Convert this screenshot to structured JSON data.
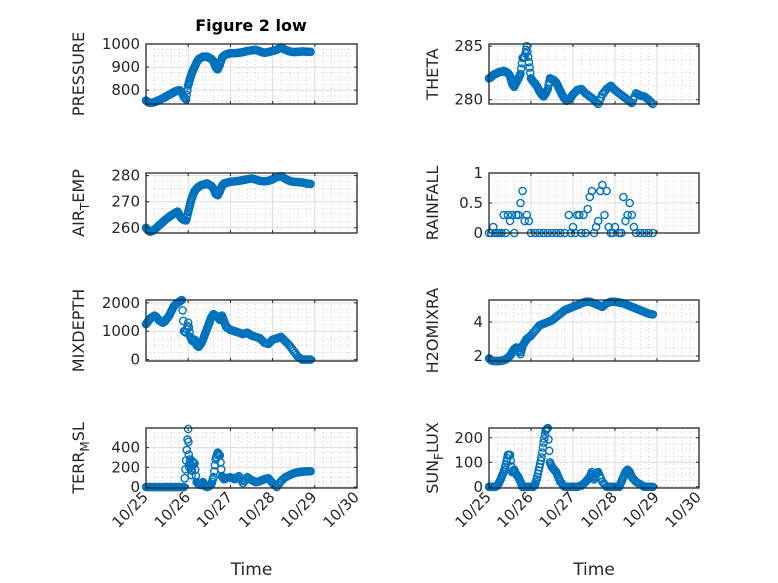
{
  "figure_title": "Figure 2 low",
  "colors": {
    "marker": "#0072BD",
    "axis": "#262626",
    "grid": "#dcdcdc",
    "minor_grid": "#b4b4b4"
  },
  "chart_data": [
    {
      "type": "scatter",
      "id": "pressure",
      "title": "Figure 2 low",
      "ylabel": "PRESSURE",
      "xlabel": "",
      "xlim": [
        25,
        30
      ],
      "ylim": [
        740,
        1000
      ],
      "xticks": [
        25,
        26,
        27,
        28,
        29,
        30
      ],
      "xticklabels": [],
      "yticks": [
        800,
        900,
        1000
      ],
      "yticklabels": [
        "800",
        "900",
        "1000"
      ],
      "grid": true,
      "minor_grid": true,
      "x": [
        25.0,
        25.05,
        25.1,
        25.15,
        25.2,
        25.25,
        25.3,
        25.35,
        25.4,
        25.45,
        25.5,
        25.55,
        25.6,
        25.65,
        25.7,
        25.75,
        25.8,
        25.85,
        25.9,
        25.95,
        26.0,
        26.03,
        26.06,
        26.1,
        26.15,
        26.2,
        26.25,
        26.3,
        26.35,
        26.4,
        26.45,
        26.5,
        26.55,
        26.6,
        26.65,
        26.7,
        26.75,
        26.8,
        26.85,
        26.9,
        26.95,
        27.0,
        27.1,
        27.2,
        27.3,
        27.4,
        27.5,
        27.6,
        27.7,
        27.8,
        27.9,
        28.0,
        28.1,
        28.2,
        28.3,
        28.4,
        28.5,
        28.6,
        28.7,
        28.8,
        28.9
      ],
      "y": [
        755,
        748,
        745,
        746,
        748,
        752,
        756,
        760,
        765,
        770,
        775,
        780,
        785,
        790,
        795,
        798,
        800,
        790,
        770,
        760,
        820,
        840,
        860,
        880,
        900,
        920,
        935,
        940,
        945,
        945,
        945,
        940,
        935,
        925,
        900,
        890,
        910,
        940,
        950,
        955,
        958,
        960,
        960,
        962,
        965,
        970,
        972,
        975,
        968,
        962,
        965,
        970,
        975,
        985,
        975,
        968,
        965,
        966,
        968,
        967,
        966
      ]
    },
    {
      "type": "scatter",
      "id": "theta",
      "ylabel": "THETA",
      "xlabel": "",
      "xlim": [
        25,
        30
      ],
      "ylim": [
        279.6,
        285.2
      ],
      "xticks": [
        25,
        26,
        27,
        28,
        29,
        30
      ],
      "xticklabels": [],
      "yticks": [
        280,
        285
      ],
      "yticklabels": [
        "280",
        "285"
      ],
      "grid": true,
      "minor_grid": true,
      "x": [
        25.0,
        25.05,
        25.1,
        25.15,
        25.2,
        25.25,
        25.3,
        25.35,
        25.4,
        25.45,
        25.5,
        25.55,
        25.6,
        25.65,
        25.7,
        25.75,
        25.8,
        25.85,
        25.9,
        25.95,
        26.0,
        26.05,
        26.1,
        26.15,
        26.2,
        26.25,
        26.3,
        26.35,
        26.4,
        26.45,
        26.5,
        26.55,
        26.6,
        26.65,
        26.7,
        26.75,
        26.8,
        26.85,
        26.9,
        26.95,
        27.0,
        27.1,
        27.2,
        27.3,
        27.4,
        27.5,
        27.6,
        27.7,
        27.8,
        27.9,
        28.0,
        28.1,
        28.2,
        28.3,
        28.4,
        28.5,
        28.6,
        28.7,
        28.8,
        28.9
      ],
      "y": [
        282.0,
        282.1,
        282.3,
        282.4,
        282.5,
        282.6,
        282.6,
        282.7,
        282.6,
        282.5,
        282.2,
        281.5,
        281.2,
        281.6,
        282.0,
        282.4,
        283.9,
        284.0,
        285.0,
        283.5,
        282.0,
        281.7,
        281.5,
        281.2,
        280.8,
        280.5,
        280.3,
        280.6,
        281.0,
        282.0,
        281.9,
        281.8,
        281.6,
        281.2,
        280.8,
        280.4,
        280.1,
        279.9,
        280.0,
        280.2,
        280.5,
        280.9,
        281.0,
        280.6,
        280.3,
        280.0,
        279.6,
        280.5,
        281.0,
        281.3,
        280.9,
        280.6,
        280.3,
        280.0,
        279.7,
        280.6,
        280.4,
        280.3,
        280.0,
        279.6
      ]
    },
    {
      "type": "scatter",
      "id": "air_temp",
      "ylabel": "AIR_TEMP",
      "ylabel_main": "AIR",
      "ylabel_sub": "T",
      "ylabel_rest": "EMP",
      "xlabel": "",
      "xlim": [
        25,
        30
      ],
      "ylim": [
        258,
        281
      ],
      "xticks": [
        25,
        26,
        27,
        28,
        29,
        30
      ],
      "xticklabels": [],
      "yticks": [
        260,
        270,
        280
      ],
      "yticklabels": [
        "260",
        "270",
        "280"
      ],
      "grid": true,
      "minor_grid": true,
      "x": [
        25.0,
        25.05,
        25.1,
        25.15,
        25.2,
        25.25,
        25.3,
        25.35,
        25.4,
        25.45,
        25.5,
        25.55,
        25.6,
        25.65,
        25.7,
        25.75,
        25.8,
        25.85,
        25.9,
        25.95,
        26.0,
        26.03,
        26.06,
        26.1,
        26.15,
        26.2,
        26.25,
        26.3,
        26.35,
        26.4,
        26.45,
        26.5,
        26.55,
        26.6,
        26.65,
        26.7,
        26.75,
        26.8,
        26.85,
        26.9,
        26.95,
        27.0,
        27.1,
        27.2,
        27.3,
        27.4,
        27.5,
        27.6,
        27.7,
        27.8,
        27.9,
        28.0,
        28.1,
        28.2,
        28.3,
        28.4,
        28.5,
        28.6,
        28.7,
        28.8,
        28.9
      ],
      "y": [
        260,
        259,
        258.5,
        258.8,
        259.3,
        260,
        260.8,
        261.5,
        262.2,
        263,
        263.6,
        264.2,
        264.8,
        265.3,
        265.8,
        266.2,
        264.5,
        263.5,
        263,
        262.8,
        266,
        268,
        270,
        272,
        274,
        275,
        275.8,
        276.3,
        276.5,
        276.8,
        277,
        276.5,
        276,
        275,
        273,
        272.5,
        274,
        276,
        277,
        277.2,
        277.5,
        277.6,
        277.8,
        278,
        278.3,
        278.6,
        278.9,
        278.5,
        278,
        277.8,
        278,
        278.6,
        279.5,
        279.8,
        278.8,
        278,
        277.6,
        277.5,
        277.4,
        277.0,
        276.8
      ]
    },
    {
      "type": "scatter",
      "id": "rainfall",
      "ylabel": "RAINFALL",
      "xlabel": "",
      "xlim": [
        25,
        30
      ],
      "ylim": [
        0,
        1
      ],
      "xticks": [
        25,
        26,
        27,
        28,
        29,
        30
      ],
      "xticklabels": [],
      "yticks": [
        0,
        0.5,
        1
      ],
      "yticklabels": [
        "0",
        "0.5",
        "1"
      ],
      "grid": true,
      "minor_grid": true,
      "x": [
        25.0,
        25.05,
        25.1,
        25.15,
        25.2,
        25.25,
        25.3,
        25.35,
        25.4,
        25.45,
        25.5,
        25.55,
        25.6,
        25.65,
        25.7,
        25.75,
        25.8,
        25.85,
        25.9,
        25.95,
        26.0,
        26.1,
        26.2,
        26.3,
        26.4,
        26.5,
        26.6,
        26.7,
        26.8,
        26.9,
        26.95,
        27.0,
        27.05,
        27.1,
        27.15,
        27.2,
        27.25,
        27.3,
        27.35,
        27.4,
        27.45,
        27.5,
        27.55,
        27.6,
        27.65,
        27.7,
        27.75,
        27.8,
        27.85,
        27.9,
        27.95,
        28.0,
        28.1,
        28.15,
        28.2,
        28.25,
        28.3,
        28.35,
        28.4,
        28.45,
        28.5,
        28.6,
        28.7,
        28.8,
        28.9
      ],
      "y": [
        0,
        0,
        0.1,
        0,
        0,
        0,
        0,
        0.3,
        0,
        0.3,
        0.2,
        0.3,
        0,
        0.3,
        0.3,
        0.5,
        0.7,
        0.2,
        0.3,
        0.2,
        0,
        0,
        0,
        0,
        0,
        0,
        0,
        0,
        0,
        0.3,
        0,
        0.1,
        0,
        0.3,
        0.3,
        0,
        0.3,
        0,
        0.4,
        0.6,
        0.7,
        0,
        0.1,
        0.2,
        0.7,
        0.8,
        0.3,
        0.7,
        0.1,
        0,
        0,
        0.1,
        0,
        0,
        0.6,
        0.2,
        0.3,
        0.5,
        0.3,
        0.1,
        0,
        0,
        0,
        0,
        0
      ]
    },
    {
      "type": "scatter",
      "id": "mixdepth",
      "ylabel": "MIXDEPTH",
      "xlabel": "",
      "xlim": [
        25,
        30
      ],
      "ylim": [
        -50,
        2100
      ],
      "xticks": [
        25,
        26,
        27,
        28,
        29,
        30
      ],
      "xticklabels": [],
      "yticks": [
        0,
        1000,
        2000
      ],
      "yticklabels": [
        "0",
        "1000",
        "2000"
      ],
      "grid": true,
      "minor_grid": true,
      "x": [
        25.0,
        25.05,
        25.1,
        25.15,
        25.2,
        25.25,
        25.3,
        25.35,
        25.4,
        25.45,
        25.5,
        25.55,
        25.6,
        25.65,
        25.7,
        25.75,
        25.8,
        25.85,
        25.9,
        25.95,
        26.0,
        26.05,
        26.1,
        26.15,
        26.2,
        26.25,
        26.3,
        26.35,
        26.4,
        26.45,
        26.5,
        26.55,
        26.6,
        26.65,
        26.7,
        26.75,
        26.8,
        26.85,
        26.9,
        27.0,
        27.1,
        27.2,
        27.3,
        27.4,
        27.5,
        27.6,
        27.7,
        27.8,
        27.9,
        28.0,
        28.1,
        28.2,
        28.3,
        28.4,
        28.5,
        28.6,
        28.7,
        28.8,
        28.9
      ],
      "y": [
        1250,
        1350,
        1450,
        1500,
        1550,
        1500,
        1400,
        1350,
        1300,
        1350,
        1450,
        1550,
        1700,
        1850,
        1950,
        2000,
        2050,
        2100,
        1000,
        950,
        1300,
        800,
        650,
        700,
        500,
        450,
        550,
        700,
        900,
        1100,
        1300,
        1500,
        1600,
        1550,
        1500,
        1400,
        1550,
        1350,
        1150,
        1050,
        1000,
        950,
        900,
        950,
        850,
        800,
        750,
        600,
        550,
        700,
        750,
        800,
        650,
        500,
        300,
        100,
        0,
        0,
        0
      ]
    },
    {
      "type": "scatter",
      "id": "h2omixra",
      "ylabel": "H2OMIXRA",
      "xlabel": "",
      "xlim": [
        25,
        30
      ],
      "ylim": [
        1.7,
        5.3
      ],
      "xticks": [
        25,
        26,
        27,
        28,
        29,
        30
      ],
      "xticklabels": [],
      "yticks": [
        2,
        4
      ],
      "yticklabels": [
        "2",
        "4"
      ],
      "grid": true,
      "minor_grid": true,
      "x": [
        25.0,
        25.05,
        25.1,
        25.15,
        25.2,
        25.25,
        25.3,
        25.35,
        25.4,
        25.45,
        25.5,
        25.55,
        25.6,
        25.65,
        25.7,
        25.75,
        25.8,
        25.85,
        25.9,
        26.0,
        26.1,
        26.2,
        26.3,
        26.4,
        26.5,
        26.6,
        26.7,
        26.8,
        26.9,
        27.0,
        27.1,
        27.2,
        27.3,
        27.4,
        27.5,
        27.6,
        27.7,
        27.8,
        27.9,
        28.0,
        28.1,
        28.2,
        28.3,
        28.4,
        28.5,
        28.6,
        28.7,
        28.8,
        28.9
      ],
      "y": [
        1.85,
        1.75,
        1.7,
        1.7,
        1.7,
        1.7,
        1.72,
        1.75,
        1.8,
        1.9,
        2.0,
        2.2,
        2.4,
        2.5,
        2.45,
        2.1,
        2.6,
        2.8,
        3.0,
        3.2,
        3.5,
        3.8,
        3.9,
        4.0,
        4.1,
        4.3,
        4.5,
        4.7,
        4.8,
        4.9,
        5.0,
        5.1,
        5.2,
        5.2,
        5.1,
        5.0,
        4.9,
        5.1,
        5.2,
        5.2,
        5.15,
        5.1,
        5.0,
        4.9,
        4.8,
        4.7,
        4.6,
        4.5,
        4.45
      ]
    },
    {
      "type": "scatter",
      "id": "terr_msl",
      "ylabel": "TERR_MSL",
      "ylabel_main": "TERR",
      "ylabel_sub": "M",
      "ylabel_rest": "SL",
      "xlabel": "Time",
      "xlim": [
        25,
        30
      ],
      "ylim": [
        -10,
        600
      ],
      "xticks": [
        25,
        26,
        27,
        28,
        29,
        30
      ],
      "xticklabels": [
        "10/25",
        "10/26",
        "10/27",
        "10/28",
        "10/29",
        "10/30"
      ],
      "yticks": [
        0,
        200,
        400
      ],
      "yticklabels": [
        "0",
        "200",
        "400"
      ],
      "grid": true,
      "minor_grid": true,
      "x": [
        25.0,
        25.1,
        25.2,
        25.3,
        25.4,
        25.5,
        25.6,
        25.7,
        25.8,
        25.9,
        25.95,
        26.0,
        26.02,
        26.05,
        26.08,
        26.1,
        26.15,
        26.2,
        26.25,
        26.3,
        26.35,
        26.4,
        26.45,
        26.5,
        26.55,
        26.6,
        26.65,
        26.7,
        26.75,
        26.8,
        26.85,
        26.9,
        27.0,
        27.1,
        27.2,
        27.3,
        27.4,
        27.5,
        27.6,
        27.7,
        27.8,
        27.9,
        28.0,
        28.1,
        28.2,
        28.3,
        28.4,
        28.5,
        28.6,
        28.7,
        28.8,
        28.9
      ],
      "y": [
        0,
        0,
        0,
        0,
        0,
        0,
        0,
        0,
        0,
        0,
        270,
        590,
        200,
        280,
        120,
        260,
        240,
        50,
        30,
        20,
        50,
        10,
        0,
        10,
        30,
        100,
        280,
        350,
        320,
        110,
        80,
        90,
        100,
        80,
        110,
        40,
        100,
        70,
        50,
        60,
        80,
        90,
        40,
        0,
        60,
        100,
        120,
        140,
        150,
        155,
        160,
        160
      ]
    },
    {
      "type": "scatter",
      "id": "sun_flux",
      "ylabel": "SUN_FLUX",
      "ylabel_main": "SUN",
      "ylabel_sub": "F",
      "ylabel_rest": "LUX",
      "xlabel": "Time",
      "xlim": [
        25,
        30
      ],
      "ylim": [
        -5,
        240
      ],
      "xticks": [
        25,
        26,
        27,
        28,
        29,
        30
      ],
      "xticklabels": [
        "10/25",
        "10/26",
        "10/27",
        "10/28",
        "10/29",
        "10/30"
      ],
      "yticks": [
        0,
        100,
        200
      ],
      "yticklabels": [
        "0",
        "100",
        "200"
      ],
      "grid": true,
      "minor_grid": true,
      "x": [
        25.0,
        25.05,
        25.1,
        25.15,
        25.2,
        25.25,
        25.3,
        25.35,
        25.4,
        25.45,
        25.5,
        25.55,
        25.6,
        25.65,
        25.7,
        25.75,
        25.8,
        25.9,
        26.0,
        26.05,
        26.1,
        26.15,
        26.2,
        26.25,
        26.3,
        26.35,
        26.4,
        26.45,
        26.5,
        26.55,
        26.6,
        26.65,
        26.7,
        26.8,
        26.9,
        27.0,
        27.1,
        27.2,
        27.3,
        27.35,
        27.4,
        27.45,
        27.5,
        27.55,
        27.6,
        27.7,
        27.8,
        27.9,
        28.0,
        28.1,
        28.15,
        28.2,
        28.25,
        28.3,
        28.35,
        28.4,
        28.5,
        28.6,
        28.7,
        28.8,
        28.9
      ],
      "y": [
        0,
        0,
        0,
        0,
        5,
        20,
        40,
        60,
        90,
        130,
        130,
        60,
        70,
        50,
        40,
        20,
        0,
        0,
        0,
        0,
        10,
        40,
        80,
        120,
        180,
        230,
        240,
        100,
        80,
        70,
        60,
        40,
        20,
        0,
        0,
        0,
        0,
        5,
        20,
        30,
        40,
        60,
        30,
        50,
        60,
        20,
        0,
        0,
        0,
        0,
        20,
        40,
        60,
        70,
        60,
        40,
        20,
        10,
        0,
        0,
        0
      ]
    }
  ]
}
